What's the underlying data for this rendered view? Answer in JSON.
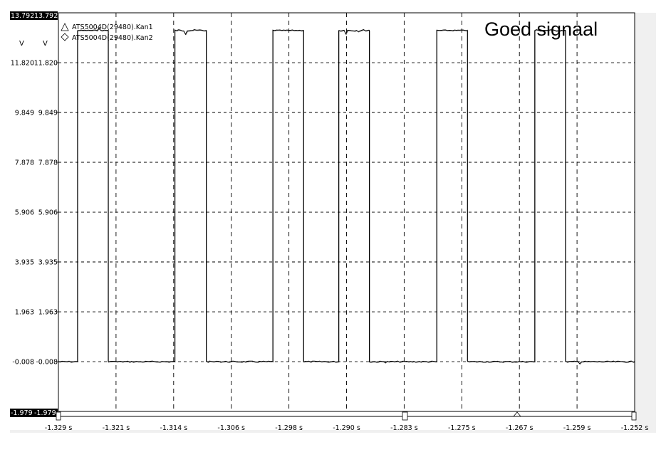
{
  "chart_data": {
    "type": "line",
    "annotation": "Goed signaal",
    "y_unit_labels": [
      "V",
      "V"
    ],
    "x_unit": "s",
    "xlim": [
      -1.329,
      -1.252
    ],
    "ylim": [
      -1.979,
      13.792
    ],
    "x_ticks": [
      "-1.329 s",
      "-1.321 s",
      "-1.314 s",
      "-1.306 s",
      "-1.298 s",
      "-1.290 s",
      "-1.283 s",
      "-1.275 s",
      "-1.267 s",
      "-1.259 s",
      "-1.252 s"
    ],
    "y_ticks_top": [
      "13.792",
      "13.792"
    ],
    "y_ticks": [
      {
        "value": 11.82,
        "left": "11.820",
        "right": "11.820"
      },
      {
        "value": 9.849,
        "left": "9.849",
        "right": "9.849"
      },
      {
        "value": 7.878,
        "left": "7.878",
        "right": "7.878"
      },
      {
        "value": 5.906,
        "left": "5.906",
        "right": "5.906"
      },
      {
        "value": 3.935,
        "left": "3.935",
        "right": "3.935"
      },
      {
        "value": 1.963,
        "left": "1.963",
        "right": "1.963"
      },
      {
        "value": -0.008,
        "left": "-0.008",
        "right": "-0.008"
      }
    ],
    "y_ticks_bottom": [
      "-1.979",
      "-1.979"
    ],
    "grid": true,
    "legend_position": "top-left",
    "series": [
      {
        "name": "ATS5004D(29480).Kan1",
        "marker": "triangle",
        "color": "#000000"
      },
      {
        "name": "ATS5004D(29480).Kan2",
        "marker": "diamond",
        "color": "#000000"
      }
    ],
    "signal": {
      "low": -0.008,
      "high": 13.1,
      "high_intervals": [
        [
          -1.32645,
          -1.32235
        ],
        [
          -1.31345,
          -1.30925
        ],
        [
          -1.30035,
          -1.29625
        ],
        [
          -1.29155,
          -1.28745
        ],
        [
          -1.27845,
          -1.27435
        ],
        [
          -1.26535,
          -1.26125
        ]
      ]
    }
  }
}
